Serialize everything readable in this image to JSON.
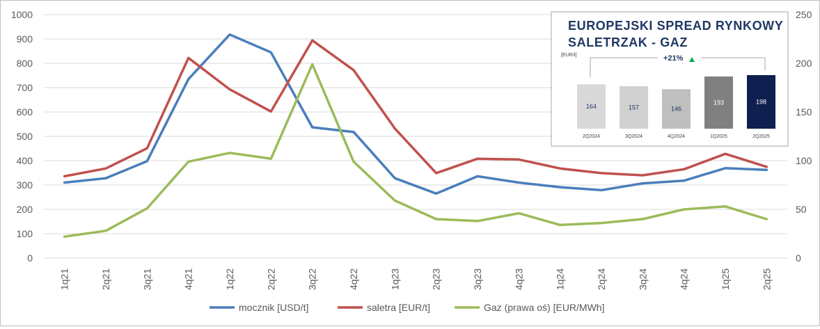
{
  "chart_data": [
    {
      "type": "line",
      "categories": [
        "1q21",
        "2q21",
        "3q21",
        "4q21",
        "1q22",
        "2q22",
        "3q22",
        "4q22",
        "1q23",
        "2q23",
        "3q23",
        "4q23",
        "1q24",
        "2q24",
        "3q24",
        "4q24",
        "1q25",
        "2q25"
      ],
      "y_left": {
        "ylim": [
          0,
          1000
        ],
        "ticks": [
          "0",
          "100",
          "200",
          "300",
          "400",
          "500",
          "600",
          "700",
          "800",
          "900",
          "1000"
        ]
      },
      "y_right": {
        "ylim": [
          0,
          250
        ],
        "ticks": [
          "0",
          "50",
          "100",
          "150",
          "200",
          "250"
        ]
      },
      "grid": true,
      "legend_position": "bottom",
      "series": [
        {
          "name": "mocznik [USD/t]",
          "axis": "left",
          "color": "#4a7ebb",
          "values": [
            310,
            328,
            398,
            735,
            918,
            845,
            537,
            518,
            328,
            265,
            336,
            310,
            291,
            279,
            307,
            318,
            369,
            362
          ]
        },
        {
          "name": "saletra [EUR/t]",
          "axis": "left",
          "color": "#c0504d",
          "values": [
            336,
            368,
            451,
            822,
            693,
            602,
            894,
            772,
            532,
            349,
            408,
            405,
            368,
            349,
            340,
            365,
            428,
            375
          ]
        },
        {
          "name": "Gaz (prawa oś) [EUR/MWh]",
          "axis": "right",
          "color": "#9bbb59",
          "values": [
            22,
            28,
            51,
            99,
            108,
            102,
            199,
            99,
            59,
            40,
            38,
            46,
            34,
            36,
            40,
            50,
            53,
            40
          ]
        }
      ]
    },
    {
      "type": "bar",
      "title_line1": "EUROPEJSKI SPREAD RYNKOWY",
      "title_line2": "SALETRZAK - GAZ",
      "unit_label": "[EUR/t]",
      "change_label": "+21%",
      "categories": [
        "2Q2024",
        "3Q2024",
        "4Q2024",
        "1Q2025",
        "2Q2025"
      ],
      "values": [
        164,
        157,
        146,
        193,
        198
      ],
      "value_labels": [
        "164",
        "157",
        "146",
        "193",
        "198"
      ],
      "bar_colors": [
        "#d9d9d9",
        "#d0d0d0",
        "#bfbfbf",
        "#808080",
        "#0f1f4f"
      ],
      "accent_color": "#00a651"
    }
  ]
}
